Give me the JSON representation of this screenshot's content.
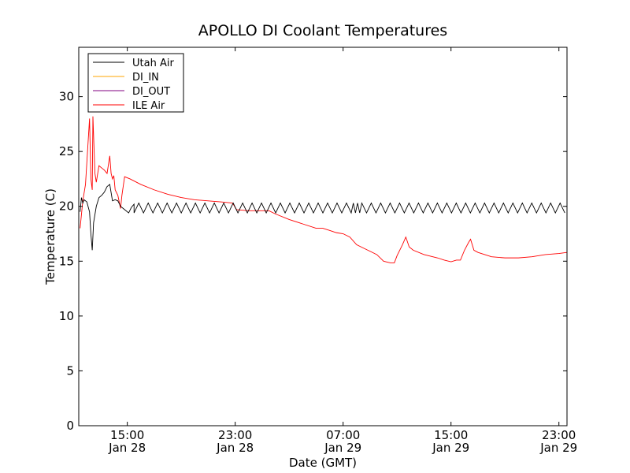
{
  "chart_data": {
    "type": "line",
    "title": "APOLLO DI Coolant Temperatures",
    "xlabel": "Date (GMT)",
    "ylabel": "Temperature (C)",
    "x_unit": "hours since Jan 28 00:00 GMT",
    "xlim": [
      11.4,
      47.6
    ],
    "ylim": [
      0,
      34.5
    ],
    "yticks": [
      0,
      5,
      10,
      15,
      20,
      25,
      30
    ],
    "xticks": [
      {
        "x": 15,
        "time": "15:00",
        "date": "Jan 28"
      },
      {
        "x": 23,
        "time": "23:00",
        "date": "Jan 28"
      },
      {
        "x": 31,
        "time": "07:00",
        "date": "Jan 29"
      },
      {
        "x": 39,
        "time": "15:00",
        "date": "Jan 29"
      },
      {
        "x": 47,
        "time": "23:00",
        "date": "Jan 29"
      }
    ],
    "legend_position": "top-left",
    "colors": {
      "Utah Air": "#000000",
      "DI_IN": "#ffa500",
      "DI_OUT": "#800080",
      "ILE Air": "#ff0000"
    },
    "series": [
      {
        "name": "Utah Air",
        "points": [
          [
            11.5,
            19.5
          ],
          [
            11.6,
            20.8
          ],
          [
            11.7,
            20.3
          ],
          [
            11.8,
            20.6
          ],
          [
            12.0,
            20.4
          ],
          [
            12.2,
            19.5
          ],
          [
            12.3,
            17.5
          ],
          [
            12.4,
            16.0
          ],
          [
            12.5,
            18.5
          ],
          [
            12.7,
            20.0
          ],
          [
            12.9,
            20.8
          ],
          [
            13.1,
            21.0
          ],
          [
            13.3,
            21.3
          ],
          [
            13.5,
            21.8
          ],
          [
            13.7,
            22.0
          ],
          [
            13.9,
            20.5
          ],
          [
            14.1,
            20.6
          ],
          [
            14.3,
            20.5
          ],
          [
            14.5,
            20.0
          ],
          [
            14.8,
            19.7
          ],
          [
            15.1,
            19.4
          ],
          [
            15.3,
            19.9
          ],
          [
            15.5,
            20.2
          ]
        ],
        "oscillation": {
          "from": 15.5,
          "to": 47.6,
          "low": 19.4,
          "high": 20.3,
          "period_hours": 0.7
        }
      },
      {
        "name": "DI_IN",
        "points": []
      },
      {
        "name": "DI_OUT",
        "points": []
      },
      {
        "name": "ILE Air",
        "points": [
          [
            11.5,
            18.0
          ],
          [
            11.7,
            20.5
          ],
          [
            11.9,
            22.0
          ],
          [
            12.1,
            26.0
          ],
          [
            12.2,
            28.0
          ],
          [
            12.3,
            22.5
          ],
          [
            12.4,
            21.5
          ],
          [
            12.45,
            28.2
          ],
          [
            12.6,
            23.0
          ],
          [
            12.7,
            22.2
          ],
          [
            12.9,
            23.7
          ],
          [
            13.1,
            23.5
          ],
          [
            13.3,
            23.3
          ],
          [
            13.5,
            23.0
          ],
          [
            13.7,
            24.6
          ],
          [
            13.8,
            23.0
          ],
          [
            13.9,
            22.5
          ],
          [
            14.0,
            22.8
          ],
          [
            14.1,
            21.5
          ],
          [
            14.3,
            21.0
          ],
          [
            14.5,
            19.8
          ],
          [
            14.6,
            21.0
          ],
          [
            14.8,
            22.7
          ],
          [
            15.2,
            22.5
          ],
          [
            16.0,
            22.0
          ],
          [
            17.0,
            21.5
          ],
          [
            18.0,
            21.1
          ],
          [
            19.0,
            20.8
          ],
          [
            20.0,
            20.6
          ],
          [
            21.0,
            20.5
          ],
          [
            22.0,
            20.4
          ],
          [
            22.8,
            20.3
          ],
          [
            23.1,
            19.7
          ],
          [
            24.0,
            19.6
          ],
          [
            25.0,
            19.6
          ],
          [
            25.5,
            19.6
          ],
          [
            26.0,
            19.3
          ],
          [
            27.0,
            18.8
          ],
          [
            28.0,
            18.4
          ],
          [
            29.0,
            18.0
          ],
          [
            29.5,
            18.0
          ],
          [
            30.0,
            17.8
          ],
          [
            30.5,
            17.6
          ],
          [
            31.0,
            17.5
          ],
          [
            31.5,
            17.2
          ],
          [
            32.0,
            16.5
          ],
          [
            32.5,
            16.2
          ],
          [
            33.0,
            15.9
          ],
          [
            33.5,
            15.6
          ],
          [
            34.0,
            15.0
          ],
          [
            34.5,
            14.85
          ],
          [
            34.8,
            14.85
          ],
          [
            35.0,
            15.5
          ],
          [
            35.4,
            16.5
          ],
          [
            35.65,
            17.2
          ],
          [
            35.9,
            16.3
          ],
          [
            36.2,
            16.0
          ],
          [
            37.0,
            15.6
          ],
          [
            38.0,
            15.3
          ],
          [
            38.5,
            15.1
          ],
          [
            39.0,
            14.95
          ],
          [
            39.4,
            15.1
          ],
          [
            39.7,
            15.1
          ],
          [
            40.0,
            16.0
          ],
          [
            40.3,
            16.7
          ],
          [
            40.45,
            17.0
          ],
          [
            40.7,
            16.0
          ],
          [
            41.0,
            15.8
          ],
          [
            42.0,
            15.4
          ],
          [
            43.0,
            15.3
          ],
          [
            44.0,
            15.3
          ],
          [
            45.0,
            15.4
          ],
          [
            46.0,
            15.6
          ],
          [
            47.0,
            15.7
          ],
          [
            47.6,
            15.8
          ]
        ]
      }
    ]
  }
}
